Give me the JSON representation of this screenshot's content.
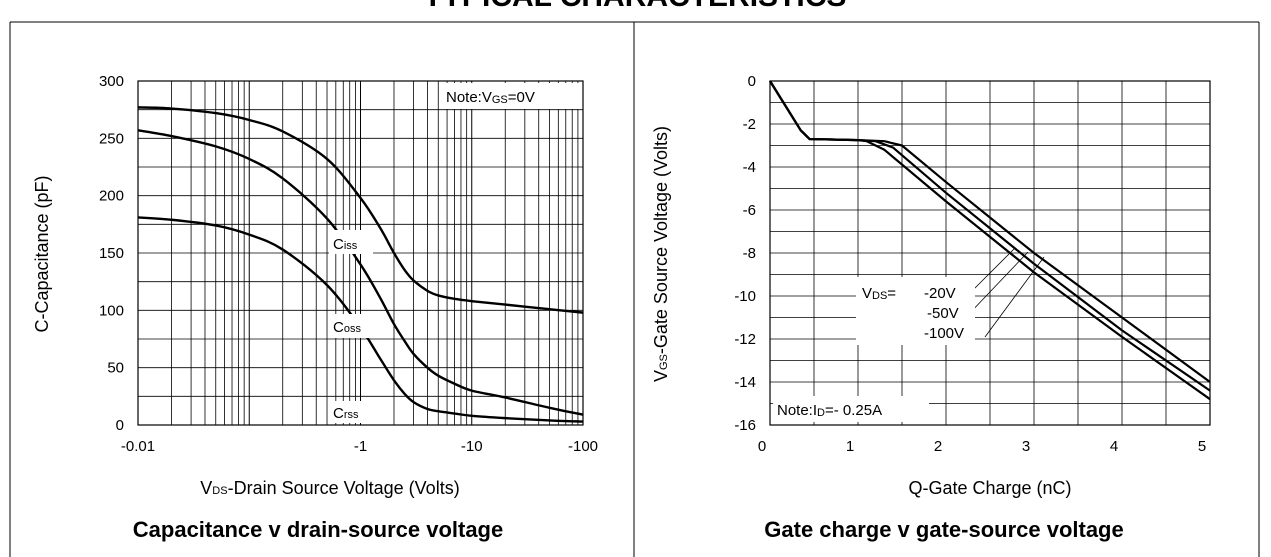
{
  "page": {
    "title": "TYPICAL CHARACTERISTICS"
  },
  "charts": [
    {
      "caption": "Capacitance v drain-source voltage",
      "note": {
        "main": "Note:V",
        "sub": "GS",
        "rest": "=0V"
      }
    },
    {
      "caption": "Gate charge v gate-source voltage",
      "note": {
        "main": "Note:I",
        "sub": "D",
        "rest": "=- 0.25A"
      },
      "vds_label": {
        "main": "V",
        "sub": "DS",
        "rest": "="
      }
    }
  ],
  "chart_data": [
    {
      "type": "line",
      "title": "Capacitance v drain-source voltage",
      "xlabel": {
        "main": "V",
        "sub": "DS",
        "rest": "-Drain Source Voltage (Volts)"
      },
      "ylabel": "C-Capacitance (pF)",
      "x_scale": "log",
      "xlim": [
        -0.01,
        -100
      ],
      "ylim": [
        0,
        300
      ],
      "x_ticks": [
        -0.01,
        -1,
        -10,
        -100
      ],
      "x_tick_labels": [
        "-0.01",
        "-1",
        "-10",
        "-100"
      ],
      "y_ticks": [
        0,
        50,
        100,
        150,
        200,
        250,
        300
      ],
      "y_tick_labels": [
        "0",
        "50",
        "100",
        "150",
        "200",
        "250",
        "300"
      ],
      "grid": true,
      "series": [
        {
          "name": {
            "main": "C",
            "sub": "iss"
          },
          "x": [
            -0.01,
            -0.02,
            -0.05,
            -0.1,
            -0.2,
            -0.5,
            -1,
            -1.5,
            -2,
            -2.5,
            -3,
            -4,
            -5,
            -7,
            -10,
            -20,
            -50,
            -100
          ],
          "y": [
            277,
            276,
            272,
            266,
            256,
            232,
            198,
            172,
            150,
            135,
            126,
            117,
            113,
            110,
            108,
            105,
            101,
            98
          ]
        },
        {
          "name": {
            "main": "C",
            "sub": "oss"
          },
          "x": [
            -0.01,
            -0.02,
            -0.05,
            -0.1,
            -0.2,
            -0.5,
            -1,
            -1.5,
            -2,
            -2.5,
            -3,
            -4,
            -5,
            -7,
            -10,
            -20,
            -50,
            -100
          ],
          "y": [
            257,
            252,
            243,
            232,
            215,
            180,
            140,
            111,
            88,
            73,
            62,
            50,
            43,
            36,
            30,
            24,
            15,
            9
          ]
        },
        {
          "name": {
            "main": "C",
            "sub": "rss"
          },
          "x": [
            -0.01,
            -0.02,
            -0.05,
            -0.1,
            -0.2,
            -0.5,
            -1,
            -1.5,
            -2,
            -2.5,
            -3,
            -4,
            -5,
            -7,
            -10,
            -20,
            -50,
            -100
          ],
          "y": [
            181,
            179,
            174,
            166,
            153,
            122,
            85,
            58,
            39,
            27,
            20,
            14,
            12,
            10,
            8,
            6,
            4,
            3
          ]
        }
      ]
    },
    {
      "type": "line",
      "title": "Gate charge v gate-source voltage",
      "xlabel": "Q-Gate Charge (nC)",
      "ylabel": {
        "main": "V",
        "sub": "GS",
        "rest": "-Gate Source Voltage (Volts)"
      },
      "xlim": [
        0,
        5
      ],
      "ylim": [
        -16,
        0
      ],
      "x_ticks": [
        0,
        1,
        2,
        3,
        4,
        5
      ],
      "x_tick_labels": [
        "0",
        "1",
        "2",
        "3",
        "4",
        "5"
      ],
      "y_ticks": [
        0,
        -2,
        -4,
        -6,
        -8,
        -10,
        -12,
        -14,
        -16
      ],
      "y_tick_labels": [
        "0",
        "-2",
        "-4",
        "-6",
        "-8",
        "-10",
        "-12",
        "-14",
        "-16"
      ],
      "grid": true,
      "series": [
        {
          "name": "-20V",
          "x": [
            0,
            0.35,
            0.45,
            0.7,
            1.0,
            1.3,
            1.5,
            2.0,
            3.0,
            4.0,
            5.0
          ],
          "y": [
            0,
            -2.3,
            -2.7,
            -2.72,
            -2.75,
            -2.8,
            -3.0,
            -4.7,
            -8.0,
            -11.0,
            -14.0
          ]
        },
        {
          "name": "-50V",
          "x": [
            0,
            0.35,
            0.45,
            0.7,
            1.0,
            1.2,
            1.4,
            2.0,
            3.0,
            4.0,
            5.0
          ],
          "y": [
            0,
            -2.3,
            -2.7,
            -2.72,
            -2.75,
            -2.8,
            -3.1,
            -5.2,
            -8.5,
            -11.6,
            -14.4
          ]
        },
        {
          "name": "-100V",
          "x": [
            0,
            0.35,
            0.45,
            0.7,
            1.0,
            1.1,
            1.3,
            2.0,
            3.0,
            4.0,
            5.0
          ],
          "y": [
            0,
            -2.3,
            -2.7,
            -2.72,
            -2.75,
            -2.8,
            -3.2,
            -5.6,
            -8.9,
            -11.9,
            -14.8
          ]
        }
      ]
    }
  ]
}
